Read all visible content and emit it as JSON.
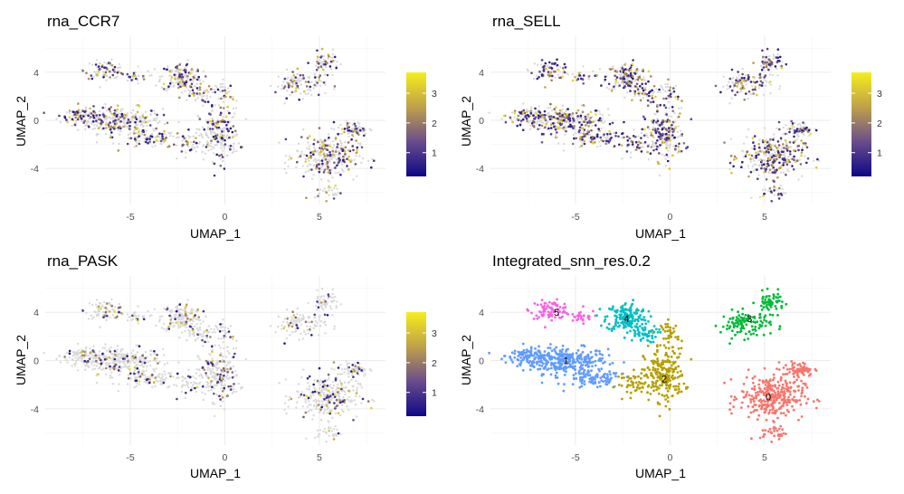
{
  "chart_data": [
    {
      "type": "scatter",
      "id": "p1",
      "title": "rna_CCR7",
      "xlabel": "UMAP_1",
      "ylabel": "UMAP_2",
      "xlim": [
        -9.5,
        8.5
      ],
      "ylim": [
        -7,
        7
      ],
      "x_ticks": [
        -5,
        0,
        5
      ],
      "y_ticks": [
        -4,
        0,
        4
      ],
      "legend": {
        "type": "colorbar",
        "ticks": [
          1,
          2,
          3
        ],
        "range": [
          0.2,
          3.7
        ],
        "colors": [
          "#0d0887",
          "#6a4c8c",
          "#bfa04a",
          "#f5ee1c"
        ]
      },
      "expression_fraction": 0.35
    },
    {
      "type": "scatter",
      "id": "p2",
      "title": "rna_SELL",
      "xlabel": "UMAP_1",
      "ylabel": "UMAP_2",
      "xlim": [
        -9.5,
        8.5
      ],
      "ylim": [
        -7,
        7
      ],
      "x_ticks": [
        -5,
        0,
        5
      ],
      "y_ticks": [
        -4,
        0,
        4
      ],
      "legend": {
        "type": "colorbar",
        "ticks": [
          1,
          2,
          3
        ],
        "range": [
          0.2,
          3.7
        ],
        "colors": [
          "#0d0887",
          "#6a4c8c",
          "#bfa04a",
          "#f5ee1c"
        ]
      },
      "expression_fraction": 0.55
    },
    {
      "type": "scatter",
      "id": "p3",
      "title": "rna_PASK",
      "xlabel": "UMAP_1",
      "ylabel": "UMAP_2",
      "xlim": [
        -9.5,
        8.5
      ],
      "ylim": [
        -7,
        7
      ],
      "x_ticks": [
        -5,
        0,
        5
      ],
      "y_ticks": [
        -4,
        0,
        4
      ],
      "legend": {
        "type": "colorbar",
        "ticks": [
          1,
          2,
          3
        ],
        "range": [
          0.2,
          3.7
        ],
        "colors": [
          "#0d0887",
          "#6a4c8c",
          "#bfa04a",
          "#f5ee1c"
        ]
      },
      "expression_fraction": 0.18
    },
    {
      "type": "scatter",
      "id": "p4",
      "title": "Integrated_snn_res.0.2",
      "xlabel": "UMAP_1",
      "ylabel": "UMAP_2",
      "xlim": [
        -9.5,
        8.5
      ],
      "ylim": [
        -7,
        7
      ],
      "x_ticks": [
        -5,
        0,
        5
      ],
      "y_ticks": [
        -4,
        0,
        4
      ],
      "clusters": [
        {
          "label": "0",
          "color": "#f8766d",
          "center": [
            5.2,
            -3.0
          ]
        },
        {
          "label": "1",
          "color": "#b79f00",
          "center": [
            -5.5,
            0.0
          ]
        },
        {
          "label": "2",
          "color": "#00ba38",
          "center": [
            -0.3,
            -1.5
          ]
        },
        {
          "label": "3",
          "color": "#00bfc4",
          "center": [
            4.2,
            3.5
          ]
        },
        {
          "label": "4",
          "color": "#619cff",
          "center": [
            -2.3,
            3.5
          ]
        },
        {
          "label": "5",
          "color": "#f564e3",
          "center": [
            -6.0,
            4.0
          ]
        }
      ]
    }
  ]
}
